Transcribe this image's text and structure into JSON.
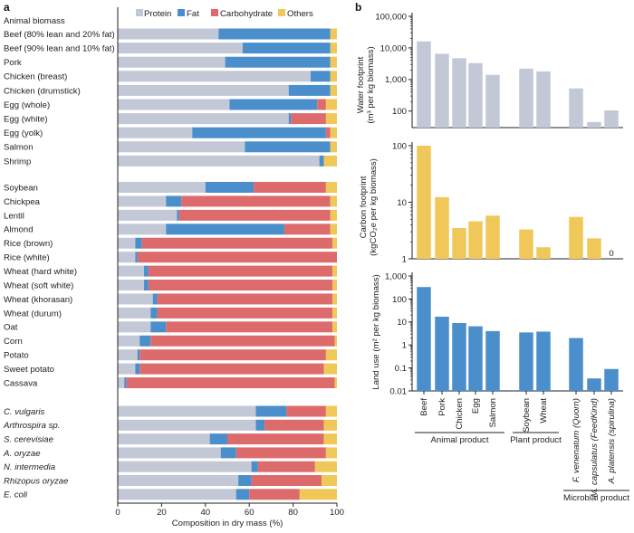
{
  "panel_a": {
    "letter": "a",
    "legend": [
      {
        "name": "Protein",
        "color": "#c3c8d6"
      },
      {
        "name": "Fat",
        "color": "#4a8fcc"
      },
      {
        "name": "Carbohydrate",
        "color": "#de6b6b"
      },
      {
        "name": "Others",
        "color": "#f0c859"
      }
    ],
    "section_title": "Animal biomass",
    "xlabel": "Composition in dry mass (%)",
    "ticks": [
      "0",
      "20",
      "40",
      "60",
      "80",
      "100"
    ]
  },
  "panel_b": {
    "letter": "b",
    "water_ylabel_1": "Water footprint",
    "water_ylabel_2": "(m³ per kg biomass)",
    "water_ticks": [
      "100,000",
      "10,000",
      "1,000",
      "100"
    ],
    "carbon_ylabel_1": "Carbon footprint",
    "carbon_ylabel_2": "(kgCO₂e per kg biomass)",
    "carbon_ticks": [
      "100",
      "10",
      "1"
    ],
    "land_ylabel": "Land use (m² per kg biomass)",
    "land_ticks": [
      "1,000",
      "100",
      "10",
      "1",
      "0.1",
      "0.01"
    ],
    "zero_label": "0",
    "categories": [
      "Beef",
      "Pork",
      "Chicken",
      "Egg",
      "Salmon",
      "Soybean",
      "Wheat",
      "F. venenatum (Quorn)",
      "M. capsulatus (FeedKind)",
      "A. platensis (spirulina)"
    ],
    "groups": [
      "Animal product",
      "Plant product",
      "Microbial product"
    ]
  },
  "chart_data": [
    {
      "type": "bar",
      "orientation": "horizontal",
      "stacked": true,
      "title": "Composition in dry mass",
      "xlabel": "Composition in dry mass (%)",
      "xlim": [
        0,
        100
      ],
      "series_names": [
        "Protein",
        "Fat",
        "Carbohydrate",
        "Others"
      ],
      "rows": [
        {
          "label": "Beef (80% lean and 20% fat)",
          "italic": false,
          "values": [
            46,
            51,
            0,
            3
          ]
        },
        {
          "label": "Beef (90% lean and 10% fat)",
          "italic": false,
          "values": [
            57,
            40,
            0,
            3
          ]
        },
        {
          "label": "Pork",
          "italic": false,
          "values": [
            49,
            48,
            0,
            3
          ]
        },
        {
          "label": "Chicken (breast)",
          "italic": false,
          "values": [
            88,
            9,
            0,
            3
          ]
        },
        {
          "label": "Chicken (drumstick)",
          "italic": false,
          "values": [
            78,
            19,
            0,
            3
          ]
        },
        {
          "label": "Egg (whole)",
          "italic": false,
          "values": [
            51,
            40,
            4,
            5
          ]
        },
        {
          "label": "Egg (white)",
          "italic": false,
          "values": [
            78,
            1,
            16,
            5
          ]
        },
        {
          "label": "Egg (yolk)",
          "italic": false,
          "values": [
            34,
            61,
            2,
            3
          ]
        },
        {
          "label": "Salmon",
          "italic": false,
          "values": [
            58,
            39,
            0,
            3
          ]
        },
        {
          "label": "Shrimp",
          "italic": false,
          "values": [
            92,
            2,
            0,
            6
          ]
        },
        {
          "label": "Soybean",
          "italic": false,
          "values": [
            40,
            22,
            33,
            5
          ]
        },
        {
          "label": "Chickpea",
          "italic": false,
          "values": [
            22,
            7,
            68,
            3
          ]
        },
        {
          "label": "Lentil",
          "italic": false,
          "values": [
            27,
            1,
            69,
            3
          ]
        },
        {
          "label": "Almond",
          "italic": false,
          "values": [
            22,
            54,
            21,
            3
          ]
        },
        {
          "label": "Rice (brown)",
          "italic": false,
          "values": [
            8,
            3,
            87,
            2
          ]
        },
        {
          "label": "Rice (white)",
          "italic": false,
          "values": [
            8,
            1,
            91,
            0
          ]
        },
        {
          "label": "Wheat (hard white)",
          "italic": false,
          "values": [
            12,
            2,
            84,
            2
          ]
        },
        {
          "label": "Wheat (soft white)",
          "italic": false,
          "values": [
            12,
            2,
            84,
            2
          ]
        },
        {
          "label": "Wheat (khorasan)",
          "italic": false,
          "values": [
            16,
            2,
            80,
            2
          ]
        },
        {
          "label": "Wheat (durum)",
          "italic": false,
          "values": [
            15,
            3,
            80,
            2
          ]
        },
        {
          "label": "Oat",
          "italic": false,
          "values": [
            15,
            7,
            76,
            2
          ]
        },
        {
          "label": "Corn",
          "italic": false,
          "values": [
            10,
            5,
            84,
            1
          ]
        },
        {
          "label": "Potato",
          "italic": false,
          "values": [
            9,
            1,
            85,
            5
          ]
        },
        {
          "label": "Sweet potato",
          "italic": false,
          "values": [
            8,
            2,
            84,
            6
          ]
        },
        {
          "label": "Cassava",
          "italic": false,
          "values": [
            3,
            1,
            95,
            1
          ]
        },
        {
          "label": "C. vulgaris",
          "italic": true,
          "values": [
            63,
            14,
            18,
            5
          ]
        },
        {
          "label": "Arthrospira sp.",
          "italic": true,
          "values": [
            63,
            4,
            27,
            6
          ]
        },
        {
          "label": "S. cerevisiae",
          "italic": true,
          "values": [
            42,
            8,
            44,
            6
          ]
        },
        {
          "label": "A. oryzae",
          "italic": true,
          "values": [
            47,
            7,
            41,
            5
          ]
        },
        {
          "label": "N. intermedia",
          "italic": true,
          "values": [
            61,
            3,
            26,
            10
          ]
        },
        {
          "label": "Rhizopus oryzae",
          "italic": true,
          "values": [
            55,
            6,
            32,
            7
          ]
        },
        {
          "label": "E. coli",
          "italic": true,
          "values": [
            54,
            6,
            23,
            17
          ]
        }
      ]
    },
    {
      "type": "bar",
      "title": "Water footprint",
      "ylabel": "Water footprint (m³ per kg biomass)",
      "yscale": "log",
      "ylim": [
        30,
        100000
      ],
      "categories": [
        "Beef",
        "Pork",
        "Chicken",
        "Egg",
        "Salmon",
        "Soybean",
        "Wheat",
        "F. venenatum (Quorn)",
        "M. capsulatus (FeedKind)",
        "A. platensis (spirulina)"
      ],
      "values": [
        16000,
        6500,
        4700,
        3300,
        1400,
        2200,
        1800,
        520,
        45,
        105
      ],
      "color": "#c3c8d6"
    },
    {
      "type": "bar",
      "title": "Carbon footprint",
      "ylabel": "Carbon footprint (kgCO₂e per kg biomass)",
      "yscale": "log",
      "ylim": [
        1,
        100
      ],
      "categories": [
        "Beef",
        "Pork",
        "Chicken",
        "Egg",
        "Salmon",
        "Soybean",
        "Wheat",
        "F. venenatum (Quorn)",
        "M. capsulatus (FeedKind)",
        "A. platensis (spirulina)"
      ],
      "values": [
        100,
        12.3,
        3.5,
        4.6,
        5.8,
        3.3,
        1.6,
        5.5,
        2.3,
        0
      ],
      "color": "#f0c859"
    },
    {
      "type": "bar",
      "title": "Land use",
      "ylabel": "Land use (m² per kg biomass)",
      "yscale": "log",
      "ylim": [
        0.01,
        1000
      ],
      "categories": [
        "Beef",
        "Pork",
        "Chicken",
        "Egg",
        "Salmon",
        "Soybean",
        "Wheat",
        "F. venenatum (Quorn)",
        "M. capsulatus (FeedKind)",
        "A. platensis (spirulina)"
      ],
      "values": [
        330,
        17,
        9,
        6.5,
        4,
        3.5,
        3.8,
        2,
        0.035,
        0.09
      ],
      "color": "#4a8fcc"
    }
  ]
}
